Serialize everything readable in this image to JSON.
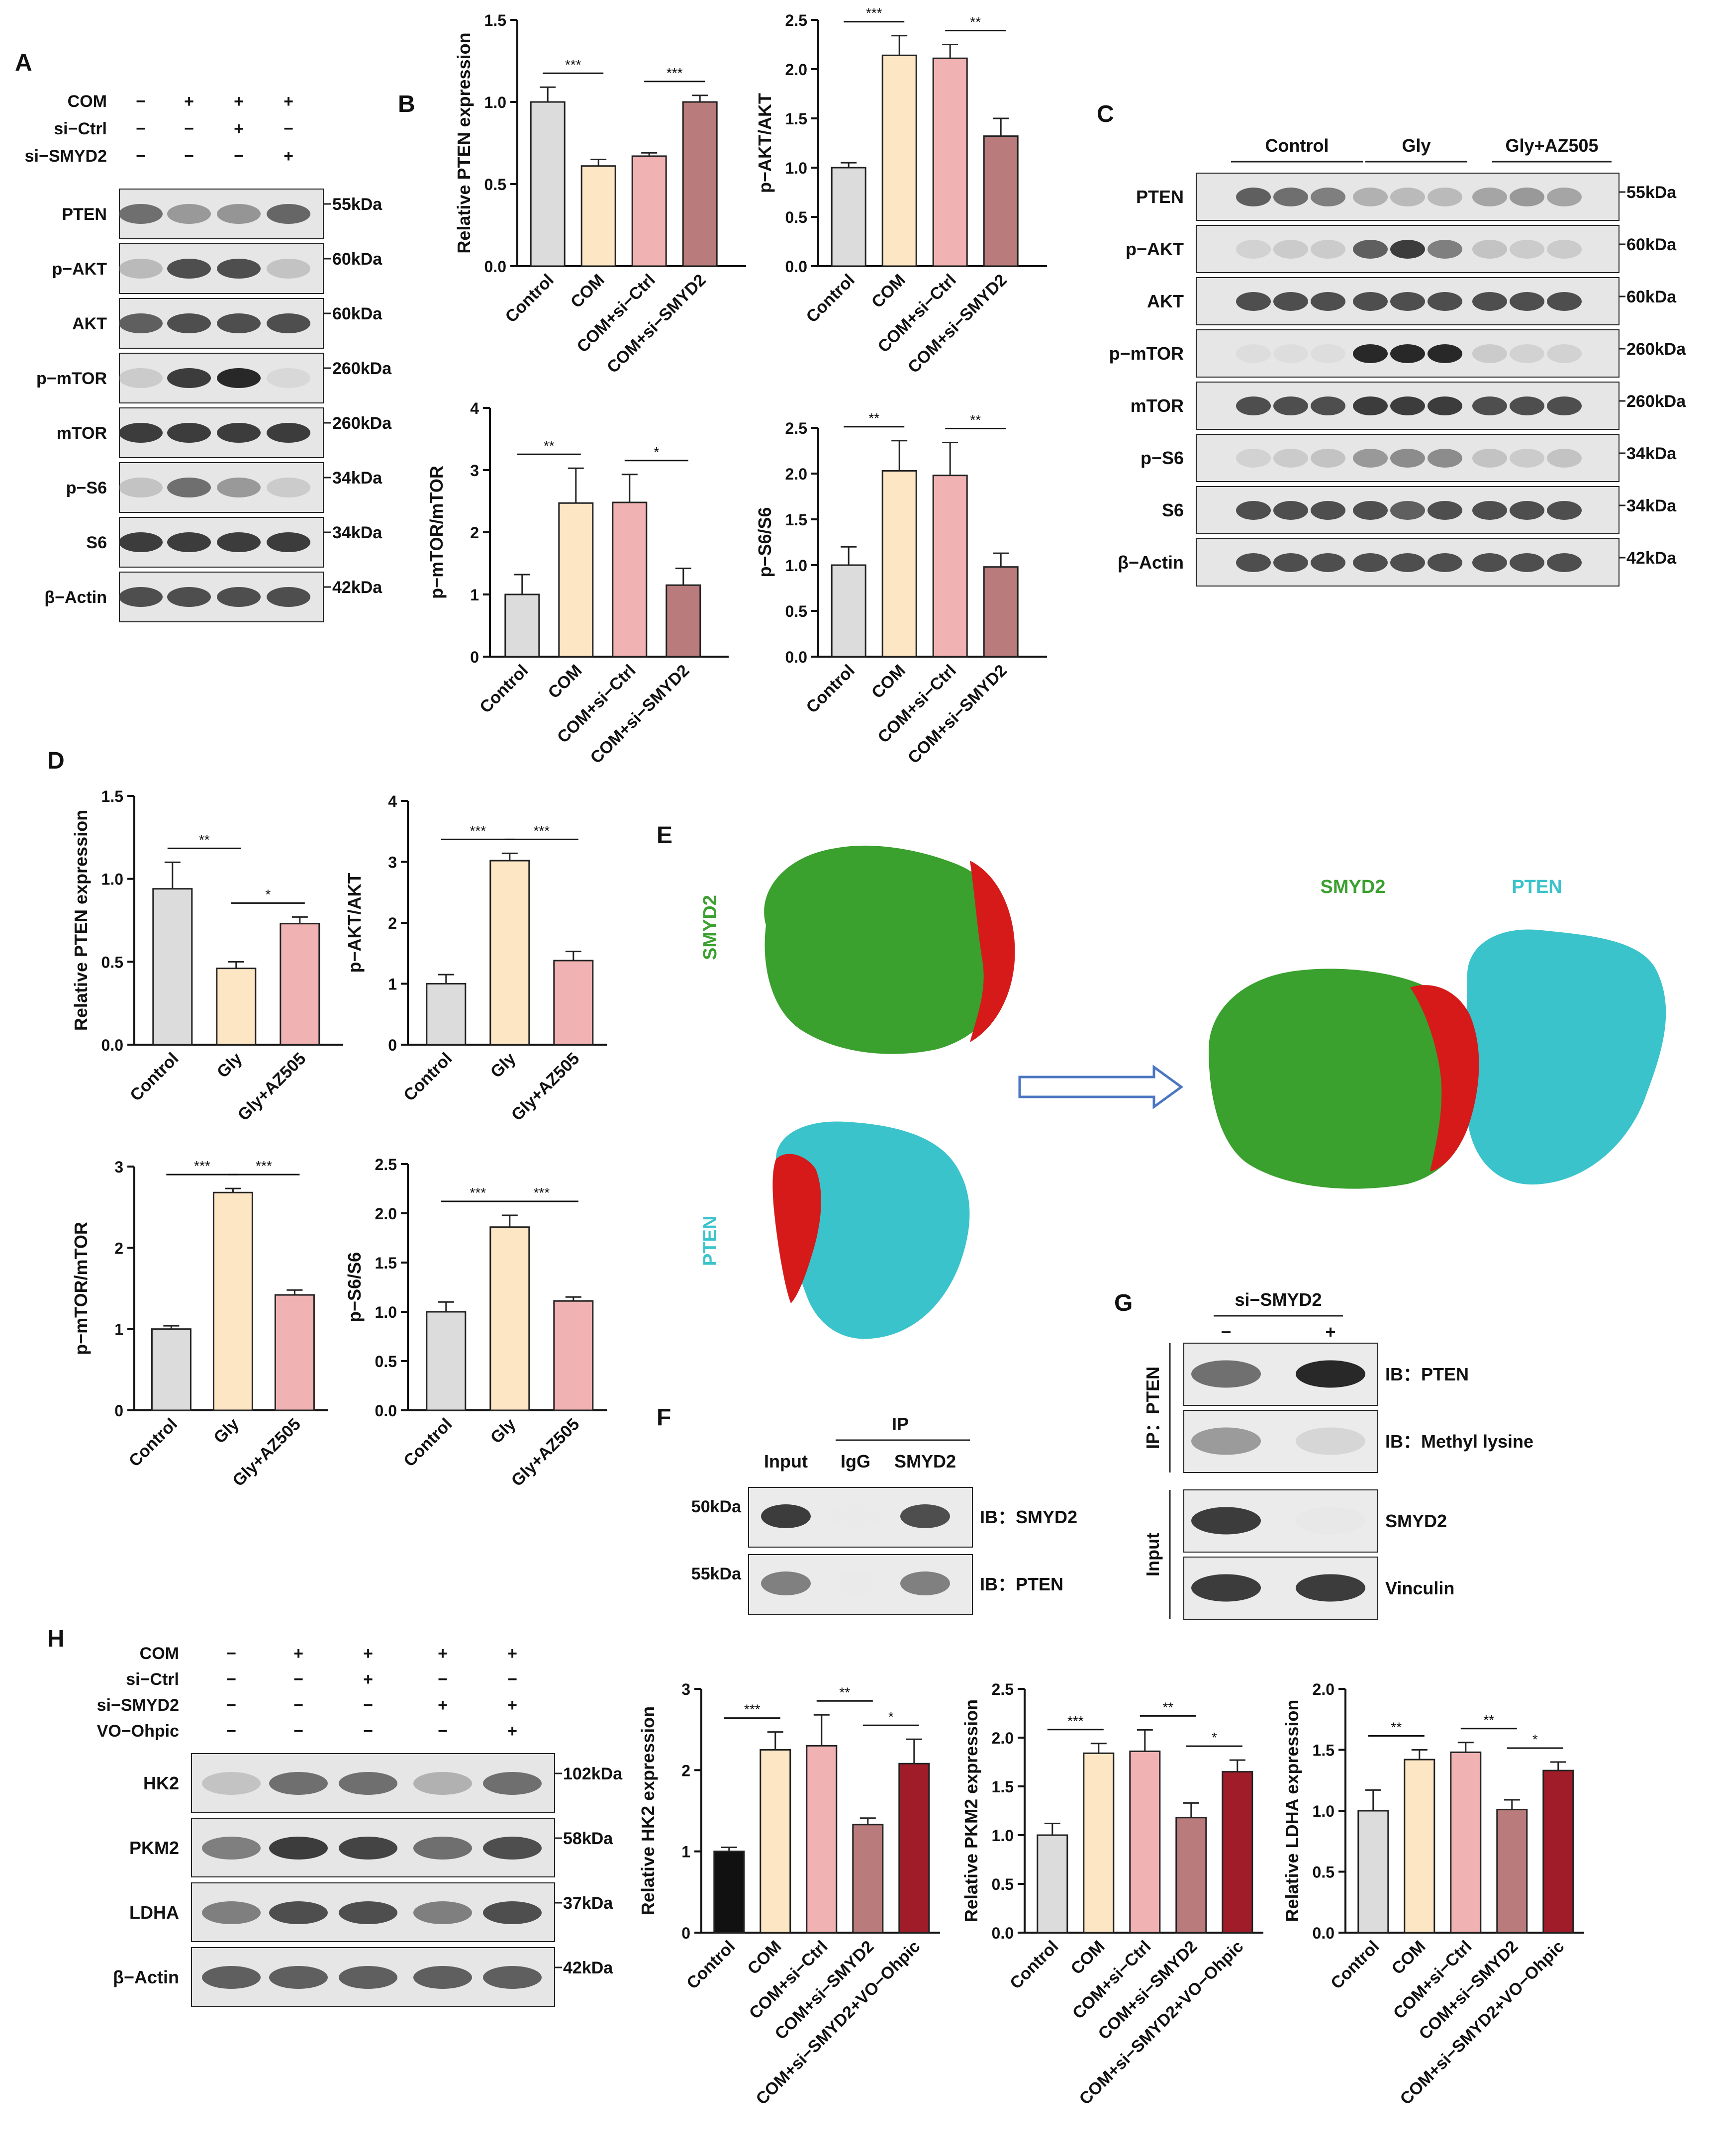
{
  "panel_letters": {
    "A": "A",
    "B": "B",
    "C": "C",
    "D": "D",
    "E": "E",
    "F": "F",
    "G": "G",
    "H": "H"
  },
  "colors": {
    "control": "#dcdcdc",
    "com": "#fde6c4",
    "com_si_ctrl": "#f0b2b2",
    "com_si_smyd2": "#b97b7b",
    "vo": "#a01c28",
    "gly": "#fde6c4",
    "gly_az": "#f0b2b2",
    "green": "#3aa02e",
    "cyan": "#3bc3cc",
    "red": "#d61a1a",
    "blue": "#4a76c2",
    "black": "#111111"
  },
  "panel_a": {
    "conditions": [
      {
        "label": "COM",
        "marks": [
          "−",
          "+",
          "+",
          "+"
        ]
      },
      {
        "label": "si−Ctrl",
        "marks": [
          "−",
          "−",
          "+",
          "−"
        ]
      },
      {
        "label": "si−SMYD2",
        "marks": [
          "−",
          "−",
          "−",
          "+"
        ]
      }
    ],
    "blots": [
      {
        "protein": "PTEN",
        "kda": "55kDa",
        "intensity": [
          0.75,
          0.6,
          0.62,
          0.78
        ]
      },
      {
        "protein": "p−AKT",
        "kda": "60kDa",
        "intensity": [
          0.45,
          0.85,
          0.85,
          0.4
        ]
      },
      {
        "protein": "AKT",
        "kda": "60kDa",
        "intensity": [
          0.8,
          0.85,
          0.85,
          0.85
        ]
      },
      {
        "protein": "p−mTOR",
        "kda": "260kDa",
        "intensity": [
          0.35,
          0.9,
          0.95,
          0.25
        ]
      },
      {
        "protein": "mTOR",
        "kda": "260kDa",
        "intensity": [
          0.9,
          0.9,
          0.9,
          0.9
        ]
      },
      {
        "protein": "p−S6",
        "kda": "34kDa",
        "intensity": [
          0.4,
          0.75,
          0.6,
          0.35
        ]
      },
      {
        "protein": "S6",
        "kda": "34kDa",
        "intensity": [
          0.9,
          0.9,
          0.9,
          0.9
        ]
      },
      {
        "protein": "β−Actin",
        "kda": "42kDa",
        "intensity": [
          0.85,
          0.85,
          0.85,
          0.85
        ]
      }
    ]
  },
  "panel_c": {
    "groups": [
      "Control",
      "Gly",
      "Gly+AZ505"
    ],
    "blots": [
      {
        "protein": "PTEN",
        "kda": "55kDa",
        "intensity": [
          0.8,
          0.75,
          0.7,
          0.5,
          0.45,
          0.45,
          0.55,
          0.6,
          0.55
        ]
      },
      {
        "protein": "p−AKT",
        "kda": "60kDa",
        "intensity": [
          0.3,
          0.35,
          0.35,
          0.8,
          0.9,
          0.7,
          0.4,
          0.35,
          0.35
        ]
      },
      {
        "protein": "AKT",
        "kda": "60kDa",
        "intensity": [
          0.85,
          0.85,
          0.85,
          0.85,
          0.85,
          0.85,
          0.85,
          0.85,
          0.85
        ]
      },
      {
        "protein": "p−mTOR",
        "kda": "260kDa",
        "intensity": [
          0.2,
          0.2,
          0.2,
          0.95,
          0.95,
          0.95,
          0.35,
          0.3,
          0.3
        ]
      },
      {
        "protein": "mTOR",
        "kda": "260kDa",
        "intensity": [
          0.85,
          0.85,
          0.85,
          0.9,
          0.9,
          0.9,
          0.85,
          0.85,
          0.85
        ]
      },
      {
        "protein": "p−S6",
        "kda": "34kDa",
        "intensity": [
          0.3,
          0.35,
          0.4,
          0.6,
          0.65,
          0.65,
          0.4,
          0.35,
          0.4
        ]
      },
      {
        "protein": "S6",
        "kda": "34kDa",
        "intensity": [
          0.85,
          0.85,
          0.85,
          0.85,
          0.8,
          0.85,
          0.85,
          0.85,
          0.85
        ]
      },
      {
        "protein": "β−Actin",
        "kda": "42kDa",
        "intensity": [
          0.85,
          0.85,
          0.85,
          0.85,
          0.85,
          0.85,
          0.85,
          0.85,
          0.85
        ]
      }
    ]
  },
  "panel_e": {
    "smyd2_label": "SMYD2",
    "pten_label": "PTEN",
    "complex_smyd2": "SMYD2",
    "complex_pten": "PTEN"
  },
  "panel_f": {
    "ip_label": "IP",
    "lanes": [
      "Input",
      "IgG",
      "SMYD2"
    ],
    "rows": [
      {
        "left": "50kDa",
        "right": "IB：SMYD2",
        "intensity": [
          0.9,
          0.0,
          0.85
        ]
      },
      {
        "left": "55kDa",
        "right": "IB：PTEN",
        "intensity": [
          0.7,
          0.0,
          0.7
        ]
      }
    ]
  },
  "panel_g": {
    "treatment": "si−SMYD2",
    "marks": [
      "−",
      "+"
    ],
    "ip_group": "IP：PTEN",
    "input_group": "Input",
    "rows": [
      {
        "label": "IB：PTEN",
        "intensity": [
          0.75,
          0.95
        ]
      },
      {
        "label": "IB：Methyl lysine",
        "intensity": [
          0.6,
          0.3
        ]
      },
      {
        "label": "SMYD2",
        "intensity": [
          0.9,
          0.1
        ]
      },
      {
        "label": "Vinculin",
        "intensity": [
          0.9,
          0.9
        ]
      }
    ]
  },
  "panel_h": {
    "conditions": [
      {
        "label": "COM",
        "marks": [
          "−",
          "+",
          "+",
          "+",
          "+"
        ]
      },
      {
        "label": "si−Ctrl",
        "marks": [
          "−",
          "−",
          "+",
          "−",
          "−"
        ]
      },
      {
        "label": "si−SMYD2",
        "marks": [
          "−",
          "−",
          "−",
          "+",
          "+"
        ]
      },
      {
        "label": "VO−Ohpic",
        "marks": [
          "−",
          "−",
          "−",
          "−",
          "+"
        ]
      }
    ],
    "blots": [
      {
        "protein": "HK2",
        "kda": "102kDa",
        "intensity": [
          0.4,
          0.75,
          0.75,
          0.5,
          0.75
        ]
      },
      {
        "protein": "PKM2",
        "kda": "58kDa",
        "intensity": [
          0.7,
          0.9,
          0.88,
          0.75,
          0.85
        ]
      },
      {
        "protein": "LDHA",
        "kda": "37kDa",
        "intensity": [
          0.7,
          0.85,
          0.85,
          0.7,
          0.85
        ]
      },
      {
        "protein": "β−Actin",
        "kda": "42kDa",
        "intensity": [
          0.8,
          0.8,
          0.8,
          0.8,
          0.8
        ]
      }
    ]
  },
  "chart_data": [
    {
      "id": "B1",
      "type": "bar",
      "ylabel": "Relative PTEN expression",
      "ylim": [
        0,
        1.5
      ],
      "yticks": [
        0.0,
        0.5,
        1.0,
        1.5
      ],
      "decimals": 1,
      "categories": [
        "Control",
        "COM",
        "COM+si−Ctrl",
        "COM+si−SMYD2"
      ],
      "values": [
        1.0,
        0.61,
        0.67,
        1.0
      ],
      "errors": [
        0.09,
        0.04,
        0.02,
        0.04
      ],
      "colors": [
        "#dcdcdc",
        "#fde6c4",
        "#f0b2b2",
        "#b97b7b"
      ],
      "sig": [
        {
          "a": 0,
          "b": 1,
          "label": "***"
        },
        {
          "a": 2,
          "b": 3,
          "label": "***"
        }
      ]
    },
    {
      "id": "B2",
      "type": "bar",
      "ylabel": "p−AKT/AKT",
      "ylim": [
        0,
        2.5
      ],
      "yticks": [
        0.0,
        0.5,
        1.0,
        1.5,
        2.0,
        2.5
      ],
      "decimals": 1,
      "categories": [
        "Control",
        "COM",
        "COM+si−Ctrl",
        "COM+si−SMYD2"
      ],
      "values": [
        1.0,
        2.14,
        2.11,
        1.32
      ],
      "errors": [
        0.05,
        0.2,
        0.14,
        0.18
      ],
      "colors": [
        "#dcdcdc",
        "#fde6c4",
        "#f0b2b2",
        "#b97b7b"
      ],
      "sig": [
        {
          "a": 0,
          "b": 1,
          "label": "***"
        },
        {
          "a": 2,
          "b": 3,
          "label": "**"
        }
      ]
    },
    {
      "id": "B3",
      "type": "bar",
      "ylabel": "p−mTOR/mTOR",
      "ylim": [
        0,
        4
      ],
      "yticks": [
        0,
        1,
        2,
        3,
        4
      ],
      "decimals": 0,
      "categories": [
        "Control",
        "COM",
        "COM+si−Ctrl",
        "COM+si−SMYD2"
      ],
      "values": [
        1.0,
        2.47,
        2.48,
        1.15
      ],
      "errors": [
        0.32,
        0.56,
        0.45,
        0.27
      ],
      "colors": [
        "#dcdcdc",
        "#fde6c4",
        "#f0b2b2",
        "#b97b7b"
      ],
      "sig": [
        {
          "a": 0,
          "b": 1,
          "label": "**"
        },
        {
          "a": 2,
          "b": 3,
          "label": "*"
        }
      ]
    },
    {
      "id": "B4",
      "type": "bar",
      "ylabel": "p−S6/S6",
      "ylim": [
        0,
        2.5
      ],
      "yticks": [
        0.0,
        0.5,
        1.0,
        1.5,
        2.0,
        2.5
      ],
      "decimals": 1,
      "categories": [
        "Control",
        "COM",
        "COM+si−Ctrl",
        "COM+si−SMYD2"
      ],
      "values": [
        1.0,
        2.03,
        1.98,
        0.98
      ],
      "errors": [
        0.2,
        0.33,
        0.36,
        0.15
      ],
      "colors": [
        "#dcdcdc",
        "#fde6c4",
        "#f0b2b2",
        "#b97b7b"
      ],
      "sig": [
        {
          "a": 0,
          "b": 1,
          "label": "**"
        },
        {
          "a": 2,
          "b": 3,
          "label": "**"
        }
      ]
    },
    {
      "id": "D1",
      "type": "bar",
      "ylabel": "Relative PTEN expression",
      "ylim": [
        0,
        1.5
      ],
      "yticks": [
        0.0,
        0.5,
        1.0,
        1.5
      ],
      "decimals": 1,
      "categories": [
        "Control",
        "Gly",
        "Gly+AZ505"
      ],
      "values": [
        0.94,
        0.46,
        0.73
      ],
      "errors": [
        0.16,
        0.04,
        0.04
      ],
      "colors": [
        "#dcdcdc",
        "#fde6c4",
        "#f0b2b2"
      ],
      "sig": [
        {
          "a": 0,
          "b": 1,
          "label": "**"
        },
        {
          "a": 1,
          "b": 2,
          "label": "*"
        }
      ]
    },
    {
      "id": "D2",
      "type": "bar",
      "ylabel": "p−AKT/AKT",
      "ylim": [
        0,
        4
      ],
      "yticks": [
        0,
        1,
        2,
        3,
        4
      ],
      "decimals": 0,
      "categories": [
        "Control",
        "Gly",
        "Gly+AZ505"
      ],
      "values": [
        1.0,
        3.02,
        1.38
      ],
      "errors": [
        0.15,
        0.12,
        0.15
      ],
      "colors": [
        "#dcdcdc",
        "#fde6c4",
        "#f0b2b2"
      ],
      "sig": [
        {
          "a": 0,
          "b": 1,
          "label": "***"
        },
        {
          "a": 1,
          "b": 2,
          "label": "***"
        }
      ]
    },
    {
      "id": "D3",
      "type": "bar",
      "ylabel": "p−mTOR/mTOR",
      "ylim": [
        0,
        3
      ],
      "yticks": [
        0,
        1,
        2,
        3
      ],
      "decimals": 0,
      "categories": [
        "Control",
        "Gly",
        "Gly+AZ505"
      ],
      "values": [
        1.0,
        2.68,
        1.42
      ],
      "errors": [
        0.04,
        0.05,
        0.06
      ],
      "colors": [
        "#dcdcdc",
        "#fde6c4",
        "#f0b2b2"
      ],
      "sig": [
        {
          "a": 0,
          "b": 1,
          "label": "***"
        },
        {
          "a": 1,
          "b": 2,
          "label": "***"
        }
      ]
    },
    {
      "id": "D4",
      "type": "bar",
      "ylabel": "p−S6/S6",
      "ylim": [
        0,
        2.5
      ],
      "yticks": [
        0.0,
        0.5,
        1.0,
        1.5,
        2.0,
        2.5
      ],
      "decimals": 1,
      "categories": [
        "Control",
        "Gly",
        "Gly+AZ505"
      ],
      "values": [
        1.0,
        1.86,
        1.11
      ],
      "errors": [
        0.1,
        0.12,
        0.04
      ],
      "colors": [
        "#dcdcdc",
        "#fde6c4",
        "#f0b2b2"
      ],
      "sig": [
        {
          "a": 0,
          "b": 1,
          "label": "***"
        },
        {
          "a": 1,
          "b": 2,
          "label": "***"
        }
      ]
    },
    {
      "id": "H1",
      "type": "bar",
      "ylabel": "Relative HK2 expression",
      "ylim": [
        0,
        3
      ],
      "yticks": [
        0,
        1,
        2,
        3
      ],
      "decimals": 0,
      "categories": [
        "Control",
        "COM",
        "COM+si−Ctrl",
        "COM+si−SMYD2",
        "COM+si−SMYD2+VO−Ohpic"
      ],
      "values": [
        1.0,
        2.25,
        2.3,
        1.33,
        2.08
      ],
      "errors": [
        0.05,
        0.22,
        0.38,
        0.08,
        0.3
      ],
      "colors": [
        "#111111",
        "#fde6c4",
        "#f0b2b2",
        "#b97b7b",
        "#a01c28"
      ],
      "sig": [
        {
          "a": 0,
          "b": 1,
          "label": "***"
        },
        {
          "a": 2,
          "b": 3,
          "label": "**"
        },
        {
          "a": 3,
          "b": 4,
          "label": "*"
        }
      ]
    },
    {
      "id": "H2",
      "type": "bar",
      "ylabel": "Relative PKM2 expression",
      "ylim": [
        0,
        2.5
      ],
      "yticks": [
        0.0,
        0.5,
        1.0,
        1.5,
        2.0,
        2.5
      ],
      "decimals": 1,
      "categories": [
        "Control",
        "COM",
        "COM+si−Ctrl",
        "COM+si−SMYD2",
        "COM+si−SMYD2+VO−Ohpic"
      ],
      "values": [
        1.0,
        1.84,
        1.86,
        1.18,
        1.65
      ],
      "errors": [
        0.12,
        0.1,
        0.22,
        0.15,
        0.12
      ],
      "colors": [
        "#dcdcdc",
        "#fde6c4",
        "#f0b2b2",
        "#b97b7b",
        "#a01c28"
      ],
      "sig": [
        {
          "a": 0,
          "b": 1,
          "label": "***"
        },
        {
          "a": 2,
          "b": 3,
          "label": "**"
        },
        {
          "a": 3,
          "b": 4,
          "label": "*"
        }
      ]
    },
    {
      "id": "H3",
      "type": "bar",
      "ylabel": "Relative LDHA expression",
      "ylim": [
        0,
        2.0
      ],
      "yticks": [
        0.0,
        0.5,
        1.0,
        1.5,
        2.0
      ],
      "decimals": 1,
      "categories": [
        "Control",
        "COM",
        "COM+si−Ctrl",
        "COM+si−SMYD2",
        "COM+si−SMYD2+VO−Ohpic"
      ],
      "values": [
        1.0,
        1.42,
        1.48,
        1.01,
        1.33
      ],
      "errors": [
        0.17,
        0.08,
        0.08,
        0.08,
        0.07
      ],
      "colors": [
        "#dcdcdc",
        "#fde6c4",
        "#f0b2b2",
        "#b97b7b",
        "#a01c28"
      ],
      "sig": [
        {
          "a": 0,
          "b": 1,
          "label": "**"
        },
        {
          "a": 2,
          "b": 3,
          "label": "**"
        },
        {
          "a": 3,
          "b": 4,
          "label": "*"
        }
      ]
    }
  ]
}
